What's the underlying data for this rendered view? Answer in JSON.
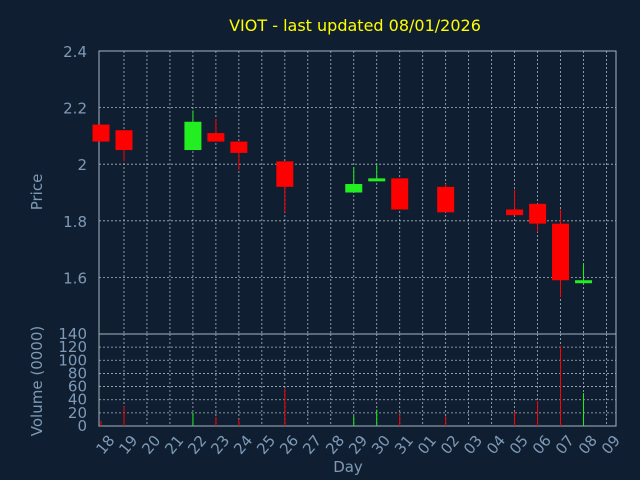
{
  "chart_data": {
    "type": "candlestick",
    "title": "VIOT - last updated 08/01/2026",
    "price_panel": {
      "ylabel": "Price",
      "ylim": [
        1.4,
        2.4
      ],
      "yticks": [
        "1.6",
        "1.8",
        "2",
        "2.2",
        "2.4"
      ],
      "ytick_values": [
        1.6,
        1.8,
        2.0,
        2.2,
        2.4
      ]
    },
    "volume_panel": {
      "ylabel": "Volume (0000)",
      "ylim": [
        0,
        140
      ],
      "yticks": [
        "0",
        "20",
        "40",
        "60",
        "80",
        "100",
        "120",
        "140"
      ],
      "ytick_values": [
        0,
        20,
        40,
        60,
        80,
        100,
        120,
        140
      ]
    },
    "xlabel": "Day",
    "x_tick_labels": [
      "18",
      "19",
      "20",
      "21",
      "22",
      "23",
      "24",
      "25",
      "26",
      "27",
      "28",
      "29",
      "30",
      "31",
      "01",
      "02",
      "03",
      "04",
      "05",
      "06",
      "07",
      "08",
      "09"
    ],
    "candles": [
      {
        "day": "18",
        "open": 2.14,
        "high": 2.14,
        "low": 2.08,
        "close": 2.08
      },
      {
        "day": "19",
        "open": 2.12,
        "high": 2.12,
        "low": 2.01,
        "close": 2.05
      },
      {
        "day": "22",
        "open": 2.05,
        "high": 2.19,
        "low": 2.05,
        "close": 2.15
      },
      {
        "day": "23",
        "open": 2.11,
        "high": 2.16,
        "low": 2.08,
        "close": 2.08
      },
      {
        "day": "24",
        "open": 2.08,
        "high": 2.08,
        "low": 1.98,
        "close": 2.04
      },
      {
        "day": "26",
        "open": 2.01,
        "high": 2.01,
        "low": 1.83,
        "close": 1.92
      },
      {
        "day": "29",
        "open": 1.9,
        "high": 1.99,
        "low": 1.9,
        "close": 1.93
      },
      {
        "day": "30",
        "open": 1.95,
        "high": 2.0,
        "low": 1.94,
        "close": 1.95
      },
      {
        "day": "31",
        "open": 1.95,
        "high": 1.95,
        "low": 1.84,
        "close": 1.84
      },
      {
        "day": "02",
        "open": 1.92,
        "high": 1.93,
        "low": 1.83,
        "close": 1.83
      },
      {
        "day": "05",
        "open": 1.84,
        "high": 1.91,
        "low": 1.82,
        "close": 1.82
      },
      {
        "day": "06",
        "open": 1.86,
        "high": 1.86,
        "low": 1.76,
        "close": 1.79
      },
      {
        "day": "07",
        "open": 1.79,
        "high": 1.84,
        "low": 1.53,
        "close": 1.59
      },
      {
        "day": "08",
        "open": 1.58,
        "high": 1.65,
        "low": 1.58,
        "close": 1.59
      }
    ],
    "volume": [
      {
        "day": "18",
        "value": 8,
        "up": false
      },
      {
        "day": "19",
        "value": 30,
        "up": false
      },
      {
        "day": "22",
        "value": 20,
        "up": true
      },
      {
        "day": "23",
        "value": 14,
        "up": false
      },
      {
        "day": "24",
        "value": 10,
        "up": false
      },
      {
        "day": "26",
        "value": 57,
        "up": false
      },
      {
        "day": "29",
        "value": 16,
        "up": true
      },
      {
        "day": "30",
        "value": 25,
        "up": true
      },
      {
        "day": "31",
        "value": 18,
        "up": false
      },
      {
        "day": "02",
        "value": 15,
        "up": false
      },
      {
        "day": "05",
        "value": 22,
        "up": false
      },
      {
        "day": "06",
        "value": 38,
        "up": false
      },
      {
        "day": "07",
        "value": 122,
        "up": false
      },
      {
        "day": "08",
        "value": 50,
        "up": true
      }
    ],
    "colors": {
      "background": "#0f1e31",
      "up": "#22ee22",
      "down": "#ff0000",
      "grid": "#aab4c0",
      "axis_text": "#7f9ab5",
      "title": "#ffff00"
    },
    "grid": true
  }
}
